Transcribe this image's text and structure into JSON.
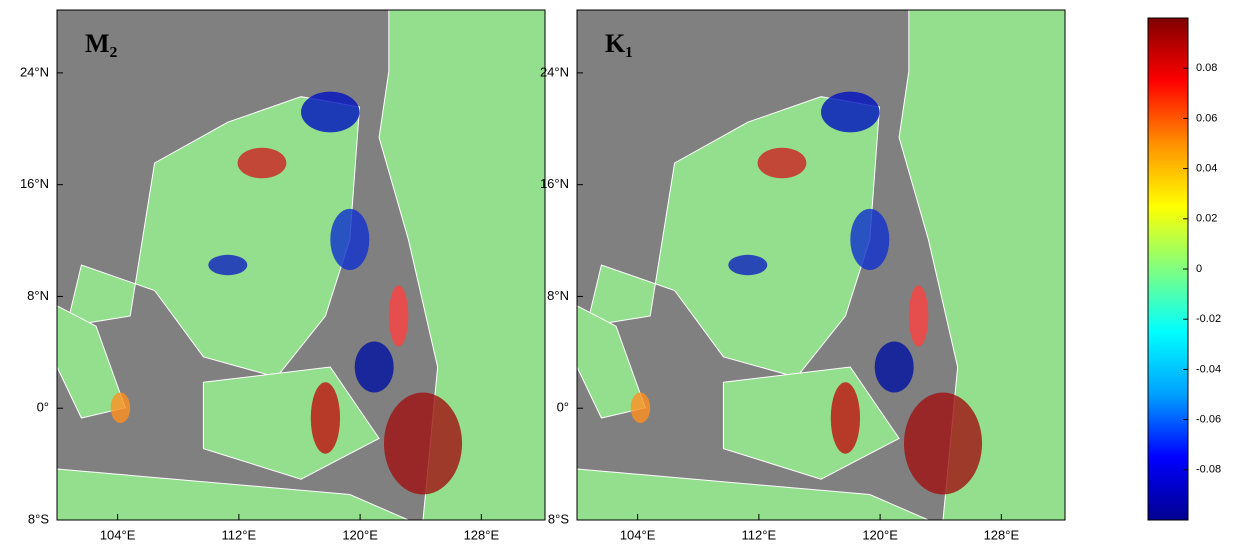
{
  "chart_data": [
    {
      "type": "map",
      "title": "M₂",
      "xlim": [
        100,
        132.2
      ],
      "ylim": [
        -8,
        28.5
      ],
      "xticks": [
        {
          "value": 104,
          "label": "104°E"
        },
        {
          "value": 112,
          "label": "112°E"
        },
        {
          "value": 120,
          "label": "120°E"
        },
        {
          "value": 128,
          "label": "128°E"
        }
      ],
      "yticks": [
        {
          "value": -8,
          "label": "8°S"
        },
        {
          "value": 0,
          "label": "0°"
        },
        {
          "value": 8,
          "label": "8°N"
        },
        {
          "value": 16,
          "label": "16°N"
        },
        {
          "value": 24,
          "label": "24°N"
        }
      ]
    },
    {
      "type": "map",
      "title": "K₁",
      "xlim": [
        100,
        132.2
      ],
      "ylim": [
        -8,
        28.5
      ],
      "xticks": [
        {
          "value": 104,
          "label": "104°E"
        },
        {
          "value": 112,
          "label": "112°E"
        },
        {
          "value": 120,
          "label": "120°E"
        },
        {
          "value": 128,
          "label": "128°E"
        }
      ],
      "yticks": [
        {
          "value": -8,
          "label": "8°S"
        },
        {
          "value": 0,
          "label": "0°"
        },
        {
          "value": 8,
          "label": "8°N"
        },
        {
          "value": 16,
          "label": "16°N"
        },
        {
          "value": 24,
          "label": "24°N"
        }
      ]
    },
    {
      "type": "colorbar",
      "ylim": [
        -0.1,
        0.1
      ],
      "yticks": [
        0.08,
        0.06,
        0.04,
        0.02,
        0,
        -0.02,
        -0.04,
        -0.06,
        -0.08
      ],
      "colors": [
        "#00008f",
        "#0000ff",
        "#00a0ff",
        "#00ffff",
        "#80ff80",
        "#ffff00",
        "#ff9000",
        "#ff0000",
        "#800000"
      ]
    }
  ]
}
